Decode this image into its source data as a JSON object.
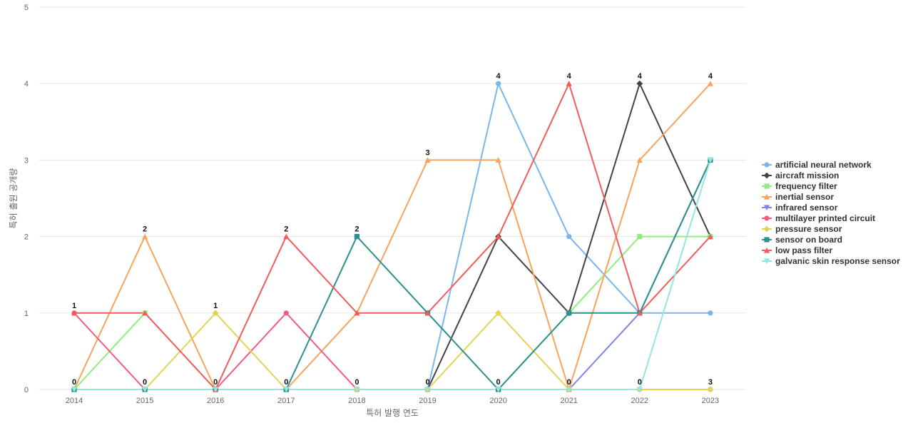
{
  "chart_data": {
    "type": "line",
    "title": "",
    "xlabel": "특허 발행 연도",
    "ylabel": "특허 출원 공개량",
    "x": [
      "2014",
      "2015",
      "2016",
      "2017",
      "2018",
      "2019",
      "2020",
      "2021",
      "2022",
      "2023"
    ],
    "ylim": [
      0,
      5
    ],
    "yticks": [
      "0",
      "1",
      "2",
      "3",
      "4",
      "5"
    ],
    "grid": true,
    "legend_position": "right",
    "data_labels": [
      "1",
      "2",
      "1",
      "2",
      "2",
      "3",
      "4",
      "4",
      "4",
      "4",
      "0",
      "0",
      "0",
      "0",
      "0",
      "0",
      "0",
      "0",
      "0",
      "3"
    ],
    "series": [
      {
        "name": "artificial neural network",
        "color": "#7cb5ec",
        "marker": "circle",
        "values": [
          0,
          0,
          0,
          0,
          0,
          0,
          4,
          2,
          1,
          1
        ]
      },
      {
        "name": "aircraft mission",
        "color": "#434348",
        "marker": "diamond",
        "values": [
          0,
          0,
          0,
          0,
          0,
          0,
          2,
          1,
          4,
          2
        ]
      },
      {
        "name": "frequency filter",
        "color": "#90ed7d",
        "marker": "square",
        "values": [
          0,
          1,
          0,
          0,
          0,
          0,
          0,
          1,
          2,
          2
        ]
      },
      {
        "name": "inertial sensor",
        "color": "#f7a35c",
        "marker": "triangle",
        "values": [
          0,
          2,
          0,
          0,
          1,
          3,
          3,
          0,
          3,
          4
        ]
      },
      {
        "name": "infrared sensor",
        "color": "#8085e9",
        "marker": "triangle-down",
        "values": [
          0,
          0,
          0,
          0,
          0,
          0,
          0,
          0,
          1,
          3
        ]
      },
      {
        "name": "multilayer printed circuit",
        "color": "#f15c80",
        "marker": "circle",
        "values": [
          1,
          0,
          0,
          1,
          0,
          0,
          0,
          0,
          0,
          0
        ]
      },
      {
        "name": "pressure sensor",
        "color": "#e4d354",
        "marker": "diamond",
        "values": [
          0,
          0,
          1,
          0,
          0,
          0,
          1,
          0,
          0,
          0
        ]
      },
      {
        "name": "sensor on board",
        "color": "#2b908f",
        "marker": "square",
        "values": [
          0,
          0,
          0,
          0,
          2,
          1,
          0,
          1,
          1,
          3
        ]
      },
      {
        "name": "low pass filter",
        "color": "#f45b5b",
        "marker": "triangle",
        "values": [
          1,
          1,
          0,
          2,
          1,
          1,
          2,
          4,
          1,
          2
        ]
      },
      {
        "name": "galvanic skin response sensor",
        "color": "#91e8e1",
        "marker": "triangle-down",
        "values": [
          0,
          0,
          0,
          0,
          0,
          0,
          0,
          0,
          0,
          3
        ]
      }
    ]
  }
}
